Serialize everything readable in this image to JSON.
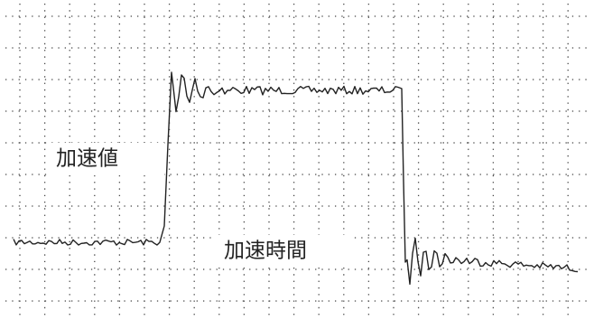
{
  "labels": {
    "value_axis": "加速値",
    "time_axis": "加速時間"
  }
}
